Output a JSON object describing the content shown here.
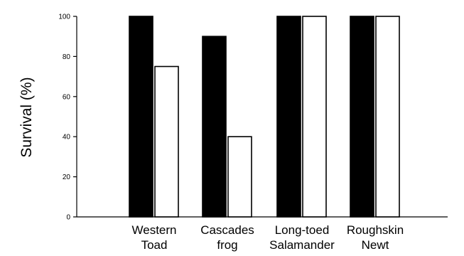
{
  "chart_data": {
    "type": "bar",
    "categories": [
      [
        "Western",
        "Toad"
      ],
      [
        "Cascades",
        "frog"
      ],
      [
        "Long-toed",
        "Salamander"
      ],
      [
        "Roughskin",
        "Newt"
      ]
    ],
    "series": [
      {
        "color": "#000000",
        "values": [
          100,
          90,
          100,
          100
        ]
      },
      {
        "color": "#ffffff",
        "values": [
          75,
          40,
          100,
          100
        ]
      }
    ],
    "ylabel": "Survival (%)",
    "ylim": [
      0,
      100
    ],
    "yticks": [
      0,
      20,
      40,
      60,
      80,
      100
    ],
    "grid": false
  }
}
